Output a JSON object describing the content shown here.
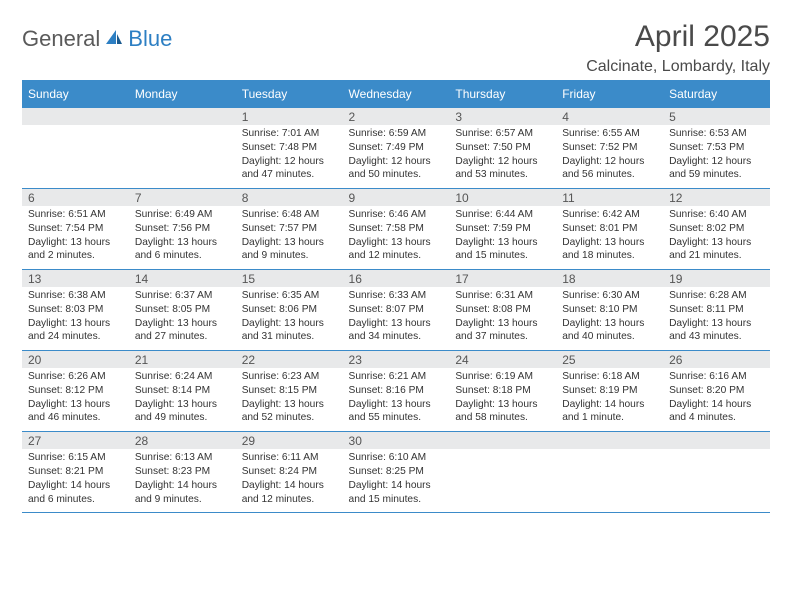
{
  "brand": {
    "part1": "General",
    "part2": "Blue"
  },
  "title": "April 2025",
  "location": "Calcinate, Lombardy, Italy",
  "colors": {
    "accent": "#3b8bc9",
    "header_bg": "#3b8bc9",
    "daynum_bg": "#e8e9ea",
    "text": "#333333",
    "title_text": "#4a4a4a",
    "logo_gray": "#5a5a5a",
    "logo_blue": "#2d7fc3"
  },
  "day_headers": [
    "Sunday",
    "Monday",
    "Tuesday",
    "Wednesday",
    "Thursday",
    "Friday",
    "Saturday"
  ],
  "weeks": [
    [
      null,
      null,
      {
        "n": "1",
        "sr": "7:01 AM",
        "ss": "7:48 PM",
        "dl": "12 hours and 47 minutes."
      },
      {
        "n": "2",
        "sr": "6:59 AM",
        "ss": "7:49 PM",
        "dl": "12 hours and 50 minutes."
      },
      {
        "n": "3",
        "sr": "6:57 AM",
        "ss": "7:50 PM",
        "dl": "12 hours and 53 minutes."
      },
      {
        "n": "4",
        "sr": "6:55 AM",
        "ss": "7:52 PM",
        "dl": "12 hours and 56 minutes."
      },
      {
        "n": "5",
        "sr": "6:53 AM",
        "ss": "7:53 PM",
        "dl": "12 hours and 59 minutes."
      }
    ],
    [
      {
        "n": "6",
        "sr": "6:51 AM",
        "ss": "7:54 PM",
        "dl": "13 hours and 2 minutes."
      },
      {
        "n": "7",
        "sr": "6:49 AM",
        "ss": "7:56 PM",
        "dl": "13 hours and 6 minutes."
      },
      {
        "n": "8",
        "sr": "6:48 AM",
        "ss": "7:57 PM",
        "dl": "13 hours and 9 minutes."
      },
      {
        "n": "9",
        "sr": "6:46 AM",
        "ss": "7:58 PM",
        "dl": "13 hours and 12 minutes."
      },
      {
        "n": "10",
        "sr": "6:44 AM",
        "ss": "7:59 PM",
        "dl": "13 hours and 15 minutes."
      },
      {
        "n": "11",
        "sr": "6:42 AM",
        "ss": "8:01 PM",
        "dl": "13 hours and 18 minutes."
      },
      {
        "n": "12",
        "sr": "6:40 AM",
        "ss": "8:02 PM",
        "dl": "13 hours and 21 minutes."
      }
    ],
    [
      {
        "n": "13",
        "sr": "6:38 AM",
        "ss": "8:03 PM",
        "dl": "13 hours and 24 minutes."
      },
      {
        "n": "14",
        "sr": "6:37 AM",
        "ss": "8:05 PM",
        "dl": "13 hours and 27 minutes."
      },
      {
        "n": "15",
        "sr": "6:35 AM",
        "ss": "8:06 PM",
        "dl": "13 hours and 31 minutes."
      },
      {
        "n": "16",
        "sr": "6:33 AM",
        "ss": "8:07 PM",
        "dl": "13 hours and 34 minutes."
      },
      {
        "n": "17",
        "sr": "6:31 AM",
        "ss": "8:08 PM",
        "dl": "13 hours and 37 minutes."
      },
      {
        "n": "18",
        "sr": "6:30 AM",
        "ss": "8:10 PM",
        "dl": "13 hours and 40 minutes."
      },
      {
        "n": "19",
        "sr": "6:28 AM",
        "ss": "8:11 PM",
        "dl": "13 hours and 43 minutes."
      }
    ],
    [
      {
        "n": "20",
        "sr": "6:26 AM",
        "ss": "8:12 PM",
        "dl": "13 hours and 46 minutes."
      },
      {
        "n": "21",
        "sr": "6:24 AM",
        "ss": "8:14 PM",
        "dl": "13 hours and 49 minutes."
      },
      {
        "n": "22",
        "sr": "6:23 AM",
        "ss": "8:15 PM",
        "dl": "13 hours and 52 minutes."
      },
      {
        "n": "23",
        "sr": "6:21 AM",
        "ss": "8:16 PM",
        "dl": "13 hours and 55 minutes."
      },
      {
        "n": "24",
        "sr": "6:19 AM",
        "ss": "8:18 PM",
        "dl": "13 hours and 58 minutes."
      },
      {
        "n": "25",
        "sr": "6:18 AM",
        "ss": "8:19 PM",
        "dl": "14 hours and 1 minute."
      },
      {
        "n": "26",
        "sr": "6:16 AM",
        "ss": "8:20 PM",
        "dl": "14 hours and 4 minutes."
      }
    ],
    [
      {
        "n": "27",
        "sr": "6:15 AM",
        "ss": "8:21 PM",
        "dl": "14 hours and 6 minutes."
      },
      {
        "n": "28",
        "sr": "6:13 AM",
        "ss": "8:23 PM",
        "dl": "14 hours and 9 minutes."
      },
      {
        "n": "29",
        "sr": "6:11 AM",
        "ss": "8:24 PM",
        "dl": "14 hours and 12 minutes."
      },
      {
        "n": "30",
        "sr": "6:10 AM",
        "ss": "8:25 PM",
        "dl": "14 hours and 15 minutes."
      },
      null,
      null,
      null
    ]
  ],
  "labels": {
    "sunrise": "Sunrise: ",
    "sunset": "Sunset: ",
    "daylight": "Daylight: "
  }
}
